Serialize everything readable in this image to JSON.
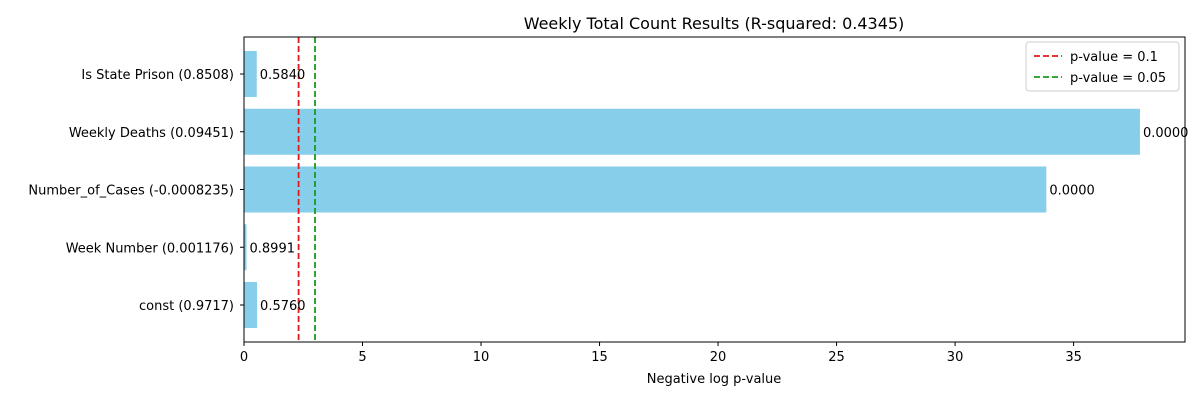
{
  "chart_data": {
    "type": "bar",
    "orientation": "horizontal",
    "title": "Weekly Total Count Results (R-squared: 0.4345)",
    "xlabel": "Negative log p-value",
    "ylabel": "",
    "xlim": [
      0,
      39.7
    ],
    "xticks": [
      0,
      5,
      10,
      15,
      20,
      25,
      30,
      35
    ],
    "grid": false,
    "bar_color": "#87CEEB",
    "categories": [
      "Is State Prison (0.8508)",
      "Weekly Deaths (0.09451)",
      "Number_of_Cases (-0.0008235)",
      "Week Number (0.001176)",
      "const (0.9717)"
    ],
    "values": [
      0.538,
      37.8,
      33.85,
      0.106,
      0.551
    ],
    "bar_labels": [
      "0.5840",
      "0.0000",
      "0.0000",
      "0.8991",
      "0.5760"
    ],
    "reference_lines": [
      {
        "label": "p-value = 0.1",
        "x": 2.303,
        "color": "#e31a1c"
      },
      {
        "label": "p-value = 0.05",
        "x": 2.996,
        "color": "#1a9a1a"
      }
    ],
    "legend": {
      "placement": "top-right"
    }
  }
}
